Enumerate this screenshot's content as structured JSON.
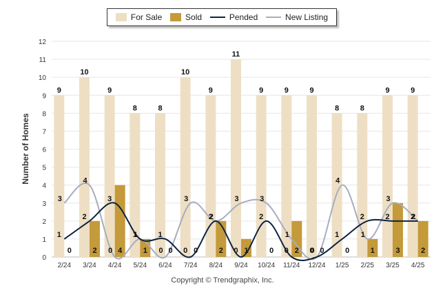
{
  "chart_data": {
    "type": "bar",
    "ylabel": "Number of Homes",
    "ylim": [
      0,
      12
    ],
    "yticks": [
      "0",
      "1",
      "2",
      "3",
      "4",
      "5",
      "6",
      "7",
      "8",
      "9",
      "10",
      "11",
      "12"
    ],
    "grid": true,
    "legend_position": "top-center",
    "categories": [
      "2/24",
      "3/24",
      "4/24",
      "5/24",
      "6/24",
      "7/24",
      "8/24",
      "9/24",
      "10/24",
      "11/24",
      "12/24",
      "1/25",
      "2/25",
      "3/25",
      "4/25"
    ],
    "series": [
      {
        "name": "For Sale",
        "kind": "bar",
        "color": "#eedfc4",
        "values": [
          9,
          10,
          9,
          8,
          8,
          10,
          9,
          11,
          9,
          9,
          9,
          8,
          8,
          9,
          9
        ]
      },
      {
        "name": "Sold",
        "kind": "bar",
        "color": "#c49a3a",
        "values": [
          0,
          2,
          4,
          1,
          0,
          0,
          2,
          1,
          0,
          2,
          0,
          0,
          1,
          3,
          2
        ]
      },
      {
        "name": "Pended",
        "kind": "line",
        "color": "#0d2340",
        "values": [
          1,
          2,
          3,
          1,
          1,
          0,
          2,
          0,
          2,
          0,
          0,
          1,
          2,
          2,
          2
        ]
      },
      {
        "name": "New Listing",
        "kind": "line",
        "color": "#a6adbf",
        "values": [
          3,
          4,
          0,
          1,
          0,
          3,
          2,
          3,
          3,
          1,
          0,
          4,
          1,
          3,
          2
        ]
      }
    ]
  },
  "footer": "Copyright © Trendgraphix, Inc."
}
